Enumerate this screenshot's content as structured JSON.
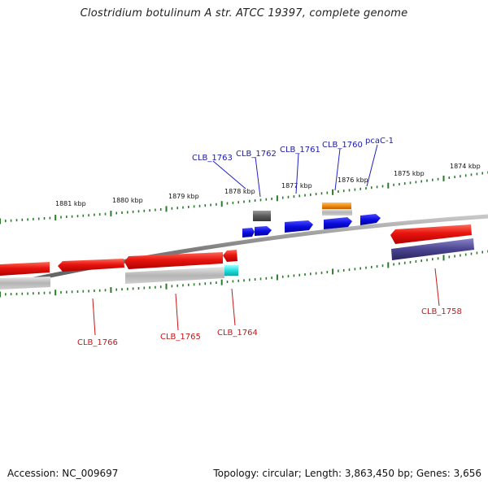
{
  "title": "Clostridium botulinum A str. ATCC 19397, complete genome",
  "footer": {
    "accession": "Accession: NC_009697",
    "summary": "Topology: circular; Length: 3,863,450 bp; Genes: 3,656"
  },
  "colors": {
    "backbone": "#8a8a8a",
    "tick": "#2a7a2a",
    "gene_red": "#e0201a",
    "gene_blue": "#1010d8",
    "gene_gray": "#b8b8b8",
    "gene_orange": "#f08a10",
    "gene_purple": "#4a4490",
    "gene_cyan": "#20e0e0",
    "gene_darkgray": "#606060",
    "label_blue": "#1a1aa8",
    "label_red": "#c41818"
  },
  "kbp_labels": [
    "1881 kbp",
    "1880 kbp",
    "1879 kbp",
    "1878 kbp",
    "1877 kbp",
    "1876 kbp",
    "1875 kbp",
    "1874 kbp"
  ],
  "top_gene_labels": [
    "CLB_1763",
    "CLB_1762",
    "CLB_1761",
    "CLB_1760",
    "pcaC-1"
  ],
  "bottom_gene_labels": [
    "CLB_1766",
    "CLB_1765",
    "CLB_1764",
    "CLB_1758"
  ]
}
